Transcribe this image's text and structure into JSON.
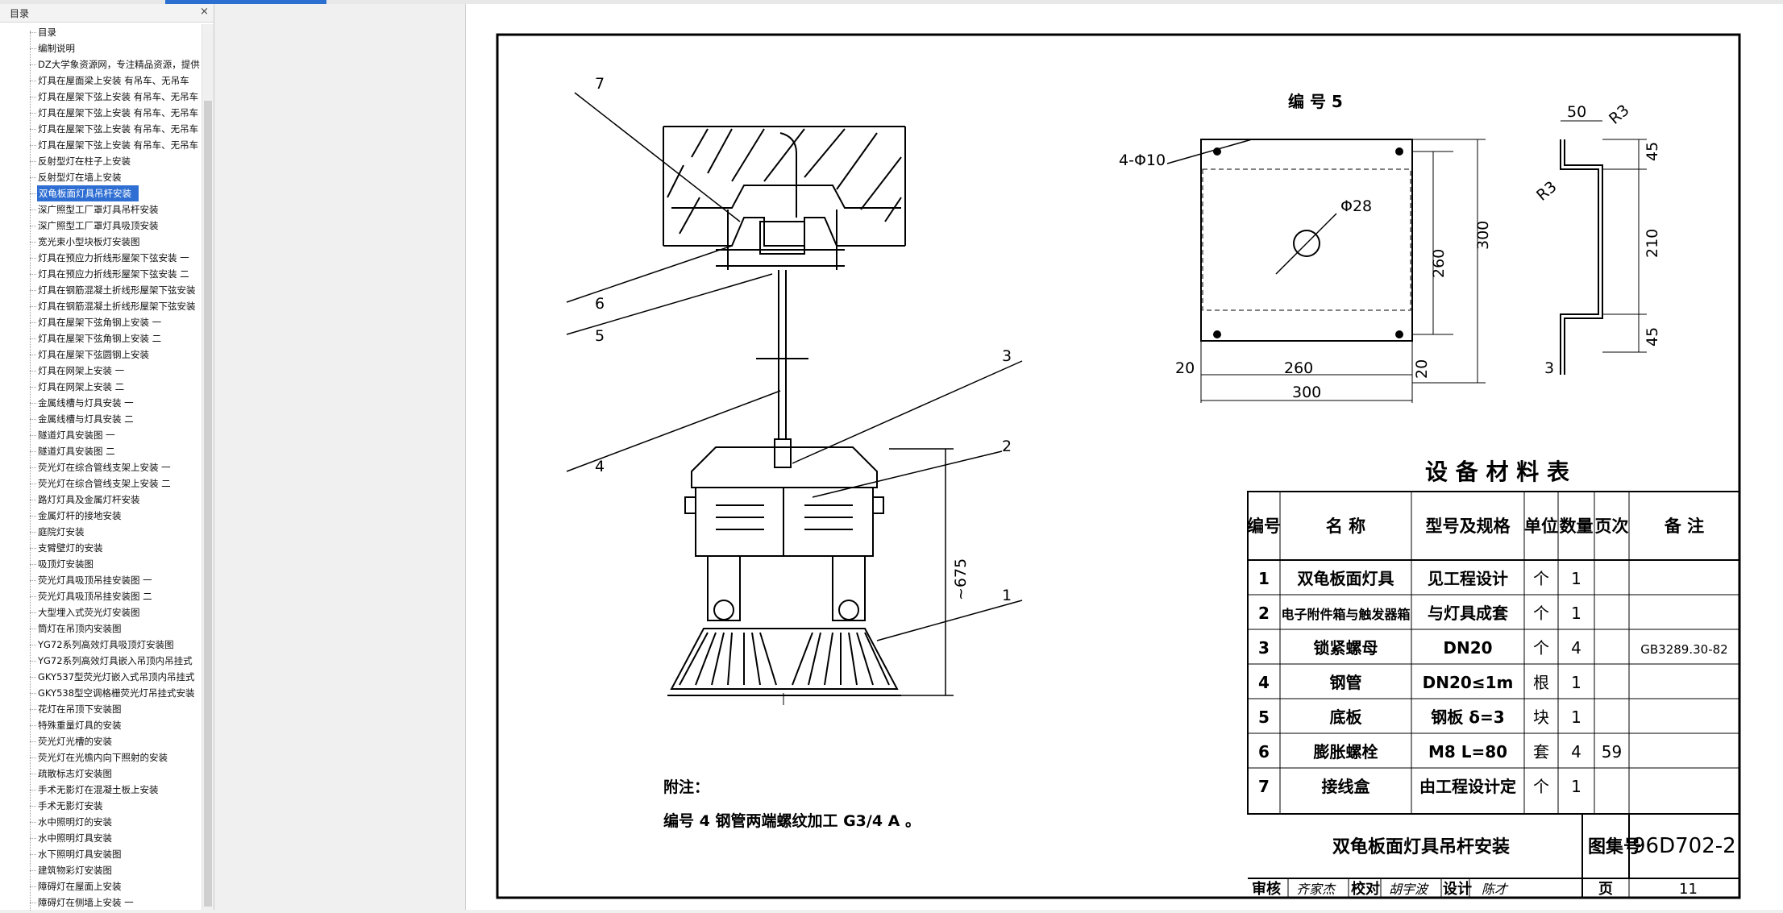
{
  "sidebar": {
    "title": "目录",
    "close_glyph": "×",
    "items": [
      {
        "label": "目录"
      },
      {
        "label": "编制说明"
      },
      {
        "label": "DZ大学象资源网，专注精品资源，提供"
      },
      {
        "label": "灯具在屋面梁上安装 有吊车、无吊车"
      },
      {
        "label": "灯具在屋架下弦上安装 有吊车、无吊车"
      },
      {
        "label": "灯具在屋架下弦上安装 有吊车、无吊车"
      },
      {
        "label": "灯具在屋架下弦上安装 有吊车、无吊车"
      },
      {
        "label": "灯具在屋架下弦上安装 有吊车、无吊车"
      },
      {
        "label": "反射型灯在柱子上安装"
      },
      {
        "label": "反射型灯在墙上安装"
      },
      {
        "label": "双龟板面灯具吊杆安装",
        "selected": true
      },
      {
        "label": "深广照型工厂罩灯具吊杆安装"
      },
      {
        "label": "深广照型工厂罩灯具吸顶安装"
      },
      {
        "label": "宽光束小型块板灯安装图"
      },
      {
        "label": "灯具在预应力折线形屋架下弦安装 一"
      },
      {
        "label": "灯具在预应力折线形屋架下弦安装 二"
      },
      {
        "label": "灯具在钢筋混凝土折线形屋架下弦安装"
      },
      {
        "label": "灯具在钢筋混凝土折线形屋架下弦安装"
      },
      {
        "label": "灯具在屋架下弦角钢上安装 一"
      },
      {
        "label": "灯具在屋架下弦角钢上安装 二"
      },
      {
        "label": "灯具在屋架下弦圆钢上安装"
      },
      {
        "label": "灯具在网架上安装 一"
      },
      {
        "label": "灯具在网架上安装 二"
      },
      {
        "label": "金属线槽与灯具安装 一"
      },
      {
        "label": "金属线槽与灯具安装 二"
      },
      {
        "label": "隧道灯具安装图 一"
      },
      {
        "label": "隧道灯具安装图 二"
      },
      {
        "label": "荧光灯在综合管线支架上安装 一"
      },
      {
        "label": "荧光灯在综合管线支架上安装 二"
      },
      {
        "label": "路灯灯具及金属灯杆安装"
      },
      {
        "label": "金属灯杆的接地安装"
      },
      {
        "label": "庭院灯安装"
      },
      {
        "label": "支臂壁灯的安装"
      },
      {
        "label": "吸顶灯安装图"
      },
      {
        "label": "荧光灯具吸顶吊挂安装图 一"
      },
      {
        "label": "荧光灯具吸顶吊挂安装图 二"
      },
      {
        "label": "大型埋入式荧光灯安装图"
      },
      {
        "label": "筒灯在吊顶内安装图"
      },
      {
        "label": "YG72系列高效灯具吸顶灯安装图"
      },
      {
        "label": "YG72系列高效灯具嵌入吊顶内吊挂式"
      },
      {
        "label": "GKY537型荧光灯嵌入式吊顶内吊挂式"
      },
      {
        "label": "GKY538型空调格栅荧光灯吊挂式安装"
      },
      {
        "label": "花灯在吊顶下安装图"
      },
      {
        "label": "特殊重量灯具的安装"
      },
      {
        "label": "荧光灯光槽的安装"
      },
      {
        "label": "荧光灯在光檐内向下照射的安装"
      },
      {
        "label": "疏散标志灯安装图"
      },
      {
        "label": "手术无影灯在混凝土板上安装"
      },
      {
        "label": "手术无影灯安装"
      },
      {
        "label": "水中照明灯的安装"
      },
      {
        "label": "水中照明灯具安装"
      },
      {
        "label": "水下照明灯具安装图"
      },
      {
        "label": "建筑物彩灯安装图"
      },
      {
        "label": "障碍灯在屋面上安装"
      },
      {
        "label": "障碍灯在侧墙上安装 一"
      }
    ]
  },
  "drawing": {
    "callouts": [
      "7",
      "6",
      "5",
      "4",
      "3",
      "2",
      "1"
    ],
    "dim_675": "~675",
    "note_title": "附注：",
    "note_text": "编号 4 钢管两端螺纹加工 G3/4 A 。",
    "plate": {
      "title": "编 号  5",
      "hole4": "4-Φ10",
      "hole_center": "Φ28",
      "dim_300_v": "300",
      "dim_260_v": "260",
      "dim_20_l": "20",
      "dim_260_h": "260",
      "dim_20_r": "20",
      "dim_300_h": "300"
    },
    "profile": {
      "d50": "50",
      "r3a": "R3",
      "r3b": "R3",
      "d45a": "45",
      "d210": "210",
      "d45b": "45",
      "d3": "3"
    }
  },
  "material_table": {
    "title": "设 备 材 料 表",
    "headers": [
      "编号",
      "名  称",
      "型号及规格",
      "单位",
      "数量",
      "页次",
      "备    注"
    ],
    "rows": [
      [
        "1",
        "双龟板面灯具",
        "见工程设计",
        "个",
        "1",
        "",
        ""
      ],
      [
        "2",
        "电子附件箱与触发器箱",
        "与灯具成套",
        "个",
        "1",
        "",
        ""
      ],
      [
        "3",
        "锁紧螺母",
        "DN20",
        "个",
        "4",
        "",
        "GB3289.30-82"
      ],
      [
        "4",
        "钢管",
        "DN20≤1m",
        "根",
        "1",
        "",
        ""
      ],
      [
        "5",
        "底板",
        "钢板 δ=3",
        "块",
        "1",
        "",
        ""
      ],
      [
        "6",
        "膨胀螺栓",
        "M8  L=80",
        "套",
        "4",
        "59",
        ""
      ],
      [
        "7",
        "接线盒",
        "由工程设计定",
        "个",
        "1",
        "",
        ""
      ]
    ]
  },
  "title_block": {
    "drawing_title": "双龟板面灯具吊杆安装",
    "atlas_label": "图集号",
    "atlas_no": "96D702-2",
    "review": "审核",
    "review_sig": "齐家杰",
    "check": "校对",
    "check_sig": "胡宇波",
    "design": "设计",
    "design_sig": "陈才",
    "page_label": "页",
    "page_no": "11"
  },
  "colors": {
    "selection": "#2f6fd3",
    "accent": "#2b6fd1"
  }
}
